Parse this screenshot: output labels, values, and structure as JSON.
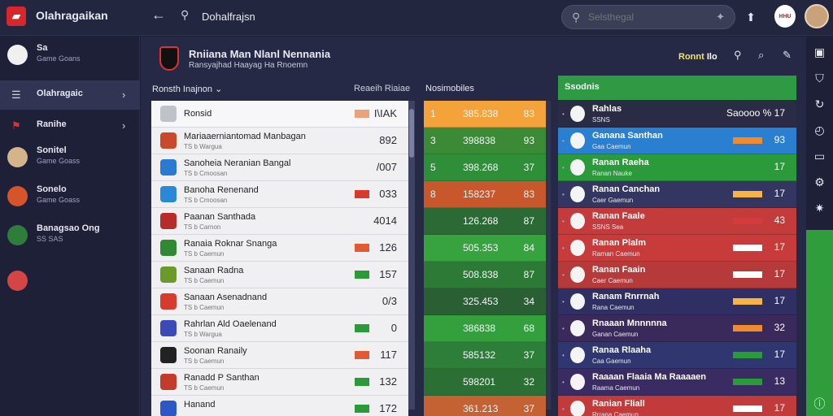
{
  "app": {
    "name": "Olahragaikan",
    "crumb": "Dohalfrajsn"
  },
  "search": {
    "placeholder": "Selsthegal"
  },
  "topbar": {
    "badge": "HHU"
  },
  "sidebar": [
    {
      "title": "Sa",
      "sub": "Game Goans",
      "color": "#f0f0f0"
    },
    {
      "title": "Olahragaic",
      "sub": "",
      "color": "",
      "active": true
    },
    {
      "title": "Ranihe",
      "sub": "",
      "color": ""
    },
    {
      "title": "Sonitel",
      "sub": "Game Goass",
      "color": "#d6b48b"
    },
    {
      "title": "Sonelo",
      "sub": "Game Goass",
      "color": "#d6542a"
    },
    {
      "title": "Banagsao Ong",
      "sub": "SS SAS",
      "color": "#2e7d3b"
    },
    {
      "title": "",
      "sub": "",
      "color": "#d64545"
    }
  ],
  "header": {
    "title": "Rniiana Man Nlanl Nennania",
    "sub": "Ransyajhad Haayag Ha Rnoemn",
    "right_label": "Ronnt",
    "right_code": "Ilo"
  },
  "columns": {
    "c1": "Ronsth Inajnon",
    "c1b": "Reaeih Riaiae",
    "c2": "Nosimobiles",
    "c3": "Ssodnis"
  },
  "list1": [
    {
      "name": "Ronsid",
      "meta": "",
      "flag": "#e8a37a",
      "val": "I\\IAK",
      "badge": "#bfc2c9"
    },
    {
      "name": "Mariaaerniantomad Manbagan",
      "meta": "TS b Wargua",
      "flag": "",
      "val": "892",
      "badge": "#c94a2b"
    },
    {
      "name": "Sanoheia Neranian Bangal",
      "meta": "TS b Cmoosan",
      "flag": "",
      "val": "/007",
      "badge": "#2b7ad1"
    },
    {
      "name": "Banoha Renenand",
      "meta": "TS b Cmoosan",
      "flag": "#d63b2d",
      "val": "033",
      "badge": "#2b88d4"
    },
    {
      "name": "Paanan Santhada",
      "meta": "TS b Carnon",
      "flag": "",
      "val": "4014",
      "badge": "#b52c29"
    },
    {
      "name": "Ranaia Roknar Snanga",
      "meta": "TS b Caemun",
      "flag": "#e05a32",
      "val": "126",
      "badge": "#2f8a33"
    },
    {
      "name": "Sanaan Radna",
      "meta": "TS b Caemun",
      "flag": "#2b9a38",
      "val": "157",
      "badge": "#6b9a2b"
    },
    {
      "name": "Sanaan Asenadnand",
      "meta": "TS b Caemun",
      "flag": "",
      "val": "0/3",
      "badge": "#d63b2d"
    },
    {
      "name": "Rahrlan Ald Oaelenand",
      "meta": "TS b Wargua",
      "flag": "#2b9a38",
      "val": "0",
      "badge": "#3a4bb8"
    },
    {
      "name": "Soonan Ranaily",
      "meta": "TS b Caemun",
      "flag": "#e05a32",
      "val": "117",
      "badge": "#222"
    },
    {
      "name": "Ranadd P Santhan",
      "meta": "TS b Caemun",
      "flag": "#2b9a38",
      "val": "132",
      "badge": "#c23b2b"
    },
    {
      "name": "Hanand",
      "meta": "",
      "flag": "#2b9a38",
      "val": "172",
      "badge": "#2b58c4"
    }
  ],
  "list2": [
    {
      "a": "1",
      "b": "385.838",
      "c": "83",
      "bg": "#f4a23a"
    },
    {
      "a": "3",
      "b": "398838",
      "c": "93",
      "bg": "#3a8a36"
    },
    {
      "a": "5",
      "b": "398.268",
      "c": "37",
      "bg": "#2f8f38"
    },
    {
      "a": "8",
      "b": "158237",
      "c": "83",
      "bg": "#c8582b"
    },
    {
      "a": "",
      "b": "126.268",
      "c": "87",
      "bg": "#2c6a35"
    },
    {
      "a": "",
      "b": "505.353",
      "c": "84",
      "bg": "#36a33f"
    },
    {
      "a": "",
      "b": "508.838",
      "c": "87",
      "bg": "#2c7a36"
    },
    {
      "a": "",
      "b": "325.453",
      "c": "34",
      "bg": "#2a5f33"
    },
    {
      "a": "",
      "b": "386838",
      "c": "68",
      "bg": "#33a03d"
    },
    {
      "a": "",
      "b": "585132",
      "c": "37",
      "bg": "#2d7e38"
    },
    {
      "a": "",
      "b": "598201",
      "c": "32",
      "bg": "#2b6f35"
    },
    {
      "a": "",
      "b": "361.213",
      "c": "37",
      "bg": "#c46233"
    }
  ],
  "list3": [
    {
      "name": "Rahlas",
      "meta": "SSNS",
      "val": "Saoooo % 17",
      "bg": "#2a2c46",
      "bar": ""
    },
    {
      "name": "Ganana Santhan",
      "meta": "Gaa Caemun",
      "val": "93",
      "bg": "#2b7fd0",
      "bar": "#f28a2c"
    },
    {
      "name": "Ranan Raeha",
      "meta": "Ranan Nauke",
      "val": "17",
      "bg": "#2b9a3a",
      "bar": "#2b9a3a"
    },
    {
      "name": "Ranan Canchan",
      "meta": "Caer Gaemun",
      "val": "17",
      "bg": "#333661",
      "bar": "#f5b445"
    },
    {
      "name": "Ranan Faale",
      "meta": "SSNS Sea",
      "val": "43",
      "bg": "#c43b3b",
      "bar": "#d63b3b"
    },
    {
      "name": "Ranan Plalm",
      "meta": "Rarnan Caemun",
      "val": "17",
      "bg": "#c83b3b",
      "bar": "#ffffff"
    },
    {
      "name": "Ranan Faain",
      "meta": "Caer Caemun",
      "val": "17",
      "bg": "#b73a3a",
      "bar": "#ffffff"
    },
    {
      "name": "Ranam Rnrrnah",
      "meta": "Rana Caemun",
      "val": "17",
      "bg": "#2f2f63",
      "bar": "#f5b445"
    },
    {
      "name": "Rnaaan Mnnnnna",
      "meta": "Ganan Caemun",
      "val": "32",
      "bg": "#3a2a5c",
      "bar": "#f08a2c"
    },
    {
      "name": "Ranaa Rlaaha",
      "meta": "Caa Gaemun",
      "val": "17",
      "bg": "#2f3670",
      "bar": "#2b9a38"
    },
    {
      "name": "Raaaan Flaaia Ma Raaaaen",
      "meta": "Raama Caemun",
      "val": "13",
      "bg": "#3a2b63",
      "bar": "#2b9a38"
    },
    {
      "name": "Ranian Fliall",
      "meta": "Rrrana Caemun",
      "val": "17",
      "bg": "#c23b3b",
      "bar": "#ffffff"
    }
  ]
}
